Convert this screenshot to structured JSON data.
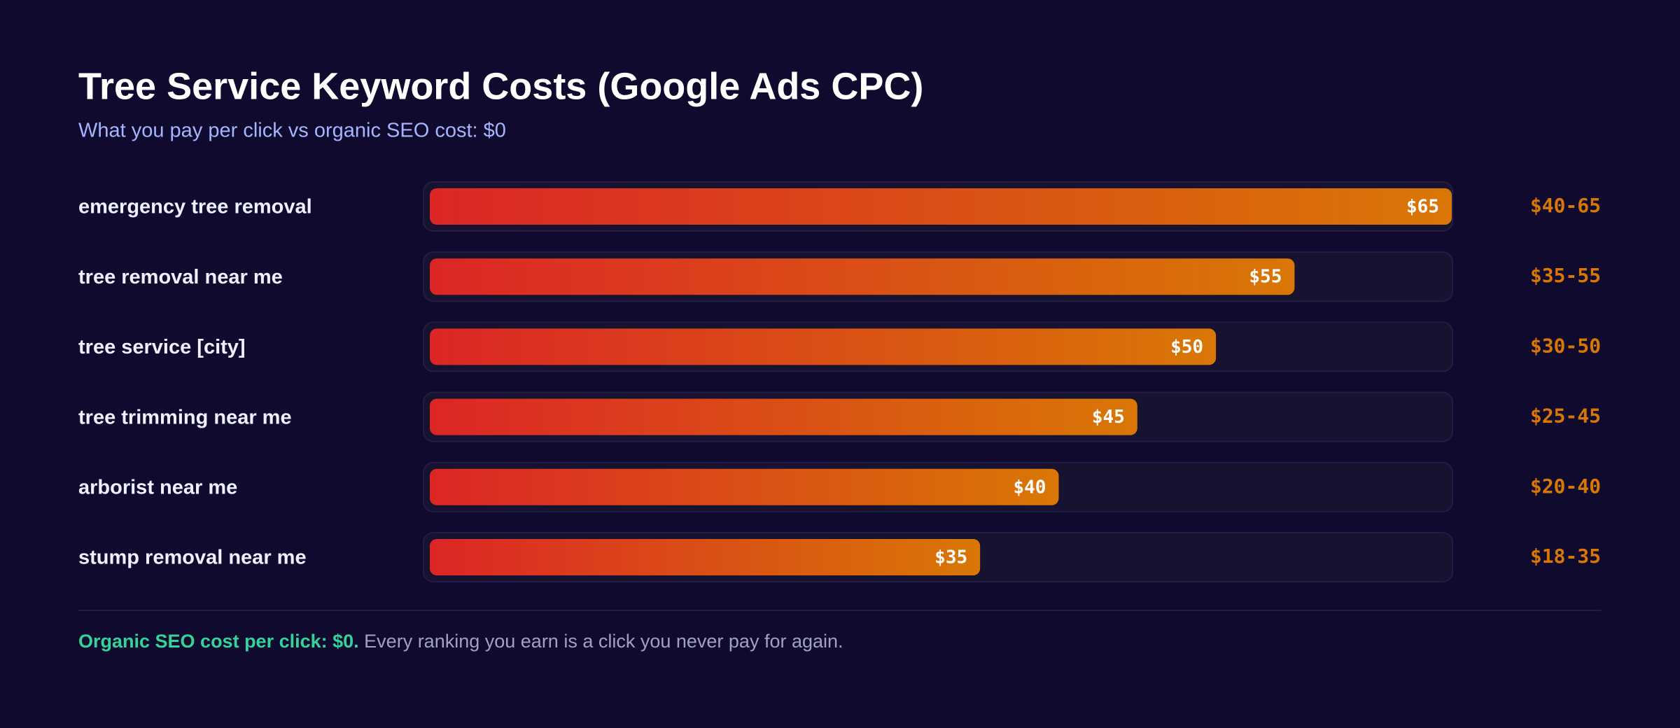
{
  "chart_data": {
    "type": "bar",
    "orientation": "horizontal",
    "title": "Tree Service Keyword Costs (Google Ads CPC)",
    "subtitle": "What you pay per click vs organic SEO cost: $0",
    "categories": [
      "emergency tree removal",
      "tree removal near me",
      "tree service [city]",
      "tree trimming near me",
      "arborist near me",
      "stump removal near me"
    ],
    "values": [
      65,
      55,
      50,
      45,
      40,
      35
    ],
    "value_labels": [
      "$65",
      "$55",
      "$50",
      "$45",
      "$40",
      "$35"
    ],
    "ranges": [
      "$40-65",
      "$35-55",
      "$30-50",
      "$25-45",
      "$20-40",
      "$18-35"
    ],
    "xlim": [
      0,
      65
    ],
    "gradient": [
      "#dc2626",
      "#d97706"
    ],
    "footnote": {
      "highlight": "Organic SEO cost per click: $0.",
      "text": " Every ranking you earn is a click you never pay for again."
    }
  }
}
